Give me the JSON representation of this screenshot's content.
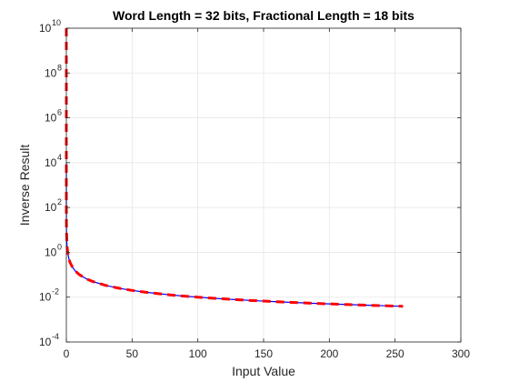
{
  "chart_data": {
    "type": "line",
    "title": "Word Length = 32 bits, Fractional Length = 18 bits",
    "xlabel": "Input Value",
    "ylabel": "Inverse Result",
    "xlim": [
      0,
      300
    ],
    "ylim": [
      0.0001,
      10000000000
    ],
    "yscale": "log",
    "grid": true,
    "xticks": [
      0,
      50,
      100,
      150,
      200,
      250,
      300
    ],
    "yticks": [
      {
        "base": "10",
        "exp": "-4",
        "value": 0.0001
      },
      {
        "base": "10",
        "exp": "-2",
        "value": 0.01
      },
      {
        "base": "10",
        "exp": "0",
        "value": 1
      },
      {
        "base": "10",
        "exp": "2",
        "value": 100
      },
      {
        "base": "10",
        "exp": "4",
        "value": 10000
      },
      {
        "base": "10",
        "exp": "6",
        "value": 1000000
      },
      {
        "base": "10",
        "exp": "8",
        "value": 100000000
      },
      {
        "base": "10",
        "exp": "10",
        "value": 10000000000
      }
    ],
    "series": [
      {
        "color": "#0000ff",
        "style": "solid",
        "x": [
          0.0001,
          0.0005,
          0.001,
          0.005,
          0.01,
          0.05,
          0.1,
          0.25,
          0.5,
          1,
          2,
          3,
          5,
          7,
          10,
          15,
          20,
          30,
          40,
          50,
          60,
          70,
          80,
          90,
          100,
          110,
          120,
          130,
          140,
          150,
          160,
          170,
          180,
          190,
          200,
          210,
          220,
          230,
          240,
          256
        ],
        "y": [
          10000,
          2000,
          1000,
          200,
          100,
          20,
          10,
          4,
          2,
          1,
          0.5,
          0.333,
          0.2,
          0.143,
          0.1,
          0.0667,
          0.05,
          0.0333,
          0.025,
          0.02,
          0.0167,
          0.0143,
          0.0125,
          0.0111,
          0.01,
          0.00909,
          0.00833,
          0.00769,
          0.00714,
          0.00667,
          0.00625,
          0.00588,
          0.00556,
          0.00526,
          0.005,
          0.00476,
          0.00455,
          0.00435,
          0.00417,
          0.0039
        ]
      },
      {
        "color": "#ff0000",
        "style": "dashed",
        "x": [
          1e-10,
          1e-08,
          1e-06,
          0.0001,
          0.001,
          0.01,
          0.1,
          0.5,
          1,
          2,
          3,
          5,
          7,
          10,
          15,
          20,
          30,
          40,
          50,
          60,
          70,
          80,
          90,
          100,
          110,
          120,
          130,
          140,
          150,
          160,
          170,
          180,
          190,
          200,
          210,
          220,
          230,
          240,
          256
        ],
        "y": [
          10000000000,
          100000000,
          1000000,
          10000,
          1000,
          100,
          10,
          2,
          1,
          0.5,
          0.333,
          0.2,
          0.143,
          0.1,
          0.0667,
          0.05,
          0.0333,
          0.025,
          0.02,
          0.0167,
          0.0143,
          0.0125,
          0.0111,
          0.01,
          0.00909,
          0.00833,
          0.00769,
          0.00714,
          0.00667,
          0.00625,
          0.00588,
          0.00556,
          0.00526,
          0.005,
          0.00476,
          0.00455,
          0.00435,
          0.00417,
          0.0039
        ]
      }
    ]
  }
}
